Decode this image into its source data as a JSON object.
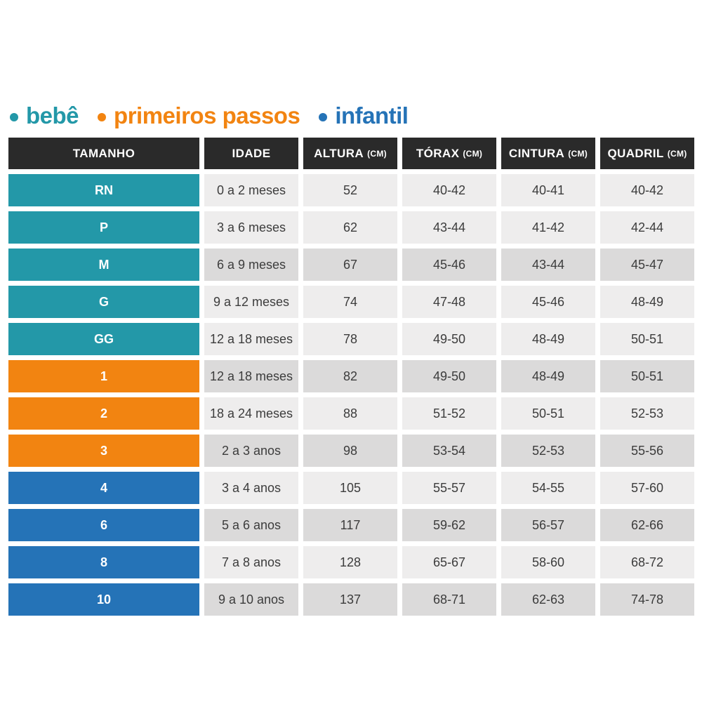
{
  "page": {
    "background": "#ffffff"
  },
  "legend": {
    "items": [
      {
        "label": "bebê",
        "color": "#2398A8"
      },
      {
        "label": "primeiros passos",
        "color": "#F28411"
      },
      {
        "label": "infantil",
        "color": "#2573B7"
      }
    ]
  },
  "table": {
    "header_bg": "#2A2A2A",
    "header_text_color": "#ffffff",
    "shade_light": "#EEEDED",
    "shade_dark": "#DBDADA",
    "cell_text_color": "#3c3c3c",
    "group_colors": {
      "bebe": "#2398A8",
      "primeiros_passos": "#F28411",
      "infantil": "#2573B7"
    },
    "columns": [
      {
        "key": "size",
        "label": "TAMANHO",
        "unit": ""
      },
      {
        "key": "idade",
        "label": "IDADE",
        "unit": ""
      },
      {
        "key": "altura",
        "label": "ALTURA",
        "unit": "(CM)"
      },
      {
        "key": "torax",
        "label": "TÓRAX",
        "unit": "(CM)"
      },
      {
        "key": "cintura",
        "label": "CINTURA",
        "unit": "(CM)"
      },
      {
        "key": "quadril",
        "label": "QUADRIL",
        "unit": "(CM)"
      }
    ],
    "rows": [
      {
        "size": "RN",
        "group": "bebe",
        "shade": "light",
        "idade": "0 a 2 meses",
        "altura": "52",
        "torax": "40-42",
        "cintura": "40-41",
        "quadril": "40-42"
      },
      {
        "size": "P",
        "group": "bebe",
        "shade": "light",
        "idade": "3 a 6 meses",
        "altura": "62",
        "torax": "43-44",
        "cintura": "41-42",
        "quadril": "42-44"
      },
      {
        "size": "M",
        "group": "bebe",
        "shade": "dark",
        "idade": "6 a 9 meses",
        "altura": "67",
        "torax": "45-46",
        "cintura": "43-44",
        "quadril": "45-47"
      },
      {
        "size": "G",
        "group": "bebe",
        "shade": "light",
        "idade": "9 a 12 meses",
        "altura": "74",
        "torax": "47-48",
        "cintura": "45-46",
        "quadril": "48-49"
      },
      {
        "size": "GG",
        "group": "bebe",
        "shade": "light",
        "idade": "12 a 18 meses",
        "altura": "78",
        "torax": "49-50",
        "cintura": "48-49",
        "quadril": "50-51"
      },
      {
        "size": "1",
        "group": "primeiros_passos",
        "shade": "dark",
        "idade": "12 a 18 meses",
        "altura": "82",
        "torax": "49-50",
        "cintura": "48-49",
        "quadril": "50-51"
      },
      {
        "size": "2",
        "group": "primeiros_passos",
        "shade": "light",
        "idade": "18 a 24 meses",
        "altura": "88",
        "torax": "51-52",
        "cintura": "50-51",
        "quadril": "52-53"
      },
      {
        "size": "3",
        "group": "primeiros_passos",
        "shade": "dark",
        "idade": "2 a 3 anos",
        "altura": "98",
        "torax": "53-54",
        "cintura": "52-53",
        "quadril": "55-56"
      },
      {
        "size": "4",
        "group": "infantil",
        "shade": "light",
        "idade": "3 a 4 anos",
        "altura": "105",
        "torax": "55-57",
        "cintura": "54-55",
        "quadril": "57-60"
      },
      {
        "size": "6",
        "group": "infantil",
        "shade": "dark",
        "idade": "5 a 6 anos",
        "altura": "117",
        "torax": "59-62",
        "cintura": "56-57",
        "quadril": "62-66"
      },
      {
        "size": "8",
        "group": "infantil",
        "shade": "light",
        "idade": "7 a 8 anos",
        "altura": "128",
        "torax": "65-67",
        "cintura": "58-60",
        "quadril": "68-72"
      },
      {
        "size": "10",
        "group": "infantil",
        "shade": "dark",
        "idade": "9 a 10 anos",
        "altura": "137",
        "torax": "68-71",
        "cintura": "62-63",
        "quadril": "74-78"
      }
    ]
  },
  "chart_data": {
    "type": "table",
    "title": "",
    "legend": [
      "bebê",
      "primeiros passos",
      "infantil"
    ],
    "columns": [
      "TAMANHO",
      "IDADE",
      "ALTURA (CM)",
      "TÓRAX (CM)",
      "CINTURA (CM)",
      "QUADRIL (CM)"
    ],
    "rows": [
      [
        "RN",
        "0 a 2 meses",
        "52",
        "40-42",
        "40-41",
        "40-42"
      ],
      [
        "P",
        "3 a 6 meses",
        "62",
        "43-44",
        "41-42",
        "42-44"
      ],
      [
        "M",
        "6 a 9 meses",
        "67",
        "45-46",
        "43-44",
        "45-47"
      ],
      [
        "G",
        "9 a 12 meses",
        "74",
        "47-48",
        "45-46",
        "48-49"
      ],
      [
        "GG",
        "12 a 18 meses",
        "78",
        "49-50",
        "48-49",
        "50-51"
      ],
      [
        "1",
        "12 a 18 meses",
        "82",
        "49-50",
        "48-49",
        "50-51"
      ],
      [
        "2",
        "18 a 24 meses",
        "88",
        "51-52",
        "50-51",
        "52-53"
      ],
      [
        "3",
        "2 a 3 anos",
        "98",
        "53-54",
        "52-53",
        "55-56"
      ],
      [
        "4",
        "3 a 4 anos",
        "105",
        "55-57",
        "54-55",
        "57-60"
      ],
      [
        "6",
        "5 a 6 anos",
        "117",
        "59-62",
        "56-57",
        "62-66"
      ],
      [
        "8",
        "7 a 8 anos",
        "128",
        "65-67",
        "58-60",
        "68-72"
      ],
      [
        "10",
        "9 a 10 anos",
        "137",
        "68-71",
        "62-63",
        "74-78"
      ]
    ],
    "row_groups": [
      "bebê",
      "bebê",
      "bebê",
      "bebê",
      "bebê",
      "primeiros passos",
      "primeiros passos",
      "primeiros passos",
      "infantil",
      "infantil",
      "infantil",
      "infantil"
    ]
  }
}
